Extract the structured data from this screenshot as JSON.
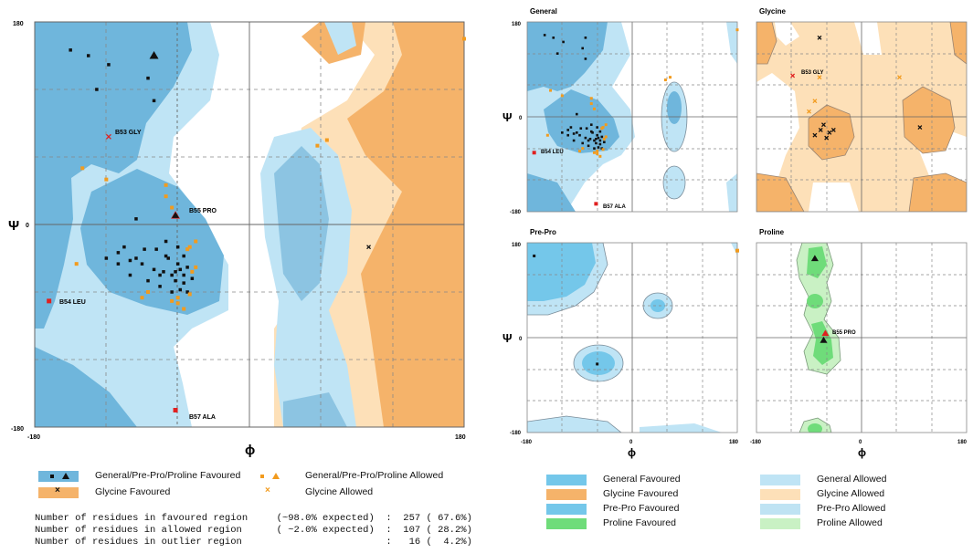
{
  "colors": {
    "general_favoured": "#6fb6dc",
    "general_allowed": "#bfe4f5",
    "glycine_favoured": "#f5b36a",
    "glycine_allowed": "#fde0b8",
    "prepro_favoured": "#74c7ea",
    "prepro_allowed": "#bfe3f3",
    "proline_favoured": "#6fdc7a",
    "proline_allowed": "#c9f1c4",
    "favoured_marker": "#111111",
    "allowed_marker": "#f29b1e",
    "outlier_marker": "#e02020"
  },
  "main_plot": {
    "xlabel": "ϕ",
    "ylabel": "Ψ",
    "tick_neg": "-180",
    "tick_zero": "0",
    "tick_pos": "180",
    "labels": [
      "B53 GLY",
      "B55 PRO",
      "B54 LEU",
      "B57 ALA"
    ]
  },
  "panels": {
    "general": {
      "title": "General",
      "labels": [
        "B54 LEU",
        "B57 ALA"
      ]
    },
    "glycine": {
      "title": "Glycine",
      "labels": [
        "B53 GLY"
      ]
    },
    "prepro": {
      "title": "Pre-Pro"
    },
    "proline": {
      "title": "Proline",
      "labels": [
        "B55 PRO"
      ]
    },
    "xlabel": "ϕ",
    "ylabel": "Ψ",
    "tick_neg": "-180",
    "tick_zero": "0",
    "tick_pos": "180"
  },
  "legend_left": {
    "fav_label": "General/Pre-Pro/Proline Favoured",
    "allowed_label": "General/Pre-Pro/Proline Allowed",
    "gly_fav_label": "Glycine Favoured",
    "gly_allowed_label": "Glycine Allowed"
  },
  "legend_right": {
    "items": [
      "General Favoured",
      "Glycine Favoured",
      "Pre-Pro Favoured",
      "Proline Favoured",
      "General Allowed",
      "Glycine Allowed",
      "Pre-Pro Allowed",
      "Proline Allowed"
    ]
  },
  "stats": {
    "line1": "Number of residues in favoured region     (~98.0% expected)  :  257 ( 67.6%)",
    "line2": "Number of residues in allowed region      ( ~2.0% expected)  :  107 ( 28.2%)",
    "line3": "Number of residues in outlier region                         :   16 (  4.2%)"
  },
  "chart_data": [
    {
      "type": "scatter",
      "title": "",
      "xlabel": "ϕ",
      "ylabel": "Ψ",
      "xlim": [
        -180,
        180
      ],
      "ylim": [
        -180,
        180
      ],
      "grid": true,
      "series": [
        {
          "name": "General/Pre-Pro/Proline Favoured",
          "points": [
            [
              -150,
              155
            ],
            [
              -135,
              150
            ],
            [
              -118,
              142
            ],
            [
              -128,
              120
            ],
            [
              -80,
              150
            ],
            [
              -85,
              130
            ],
            [
              -80,
              110
            ],
            [
              -95,
              5
            ],
            [
              -105,
              -20
            ],
            [
              -110,
              -25
            ],
            [
              -100,
              -32
            ],
            [
              -90,
              -35
            ],
            [
              -80,
              -40
            ],
            [
              -72,
              -42
            ],
            [
              -65,
              -45
            ],
            [
              -60,
              -35
            ],
            [
              -58,
              -40
            ],
            [
              -70,
              -28
            ],
            [
              -88,
              -22
            ],
            [
              -95,
              -30
            ],
            [
              -78,
              -22
            ],
            [
              -68,
              -30
            ],
            [
              -62,
              -50
            ],
            [
              -55,
              -45
            ],
            [
              -55,
              -52
            ],
            [
              -58,
              -58
            ],
            [
              -52,
              -60
            ],
            [
              -65,
              -60
            ],
            [
              -75,
              -55
            ],
            [
              -85,
              -50
            ],
            [
              -100,
              -45
            ],
            [
              -110,
              -35
            ],
            [
              -120,
              -30
            ],
            [
              -60,
              -20
            ],
            [
              -70,
              -15
            ],
            [
              -52,
              -38
            ],
            [
              -48,
              -48
            ],
            [
              -55,
              -28
            ],
            [
              -62,
              -42
            ],
            [
              -75,
              -45
            ]
          ]
        },
        {
          "name": "General/Pre-Pro/Proline Allowed",
          "points": [
            [
              -140,
              50
            ],
            [
              -120,
              40
            ],
            [
              -70,
              25
            ],
            [
              -65,
              15
            ],
            [
              -50,
              -20
            ],
            [
              -52,
              -22
            ],
            [
              -48,
              -42
            ],
            [
              -45,
              -38
            ],
            [
              -60,
              -65
            ],
            [
              -65,
              -68
            ],
            [
              -85,
              -60
            ],
            [
              -90,
              -65
            ],
            [
              -60,
              -70
            ],
            [
              -55,
              -75
            ],
            [
              -50,
              -62
            ],
            [
              -45,
              -15
            ],
            [
              -145,
              -35
            ],
            [
              -70,
              35
            ],
            [
              65,
              75
            ],
            [
              57,
              70
            ],
            [
              180,
              165
            ]
          ]
        },
        {
          "name": "Glycine Favoured",
          "points": [
            [
              100,
              -20
            ]
          ]
        },
        {
          "name": "outliers",
          "points": [
            [
              -118,
              78
            ],
            [
              -62,
              8
            ],
            [
              -168,
              -68
            ],
            [
              -62,
              -165
            ]
          ]
        }
      ]
    }
  ]
}
